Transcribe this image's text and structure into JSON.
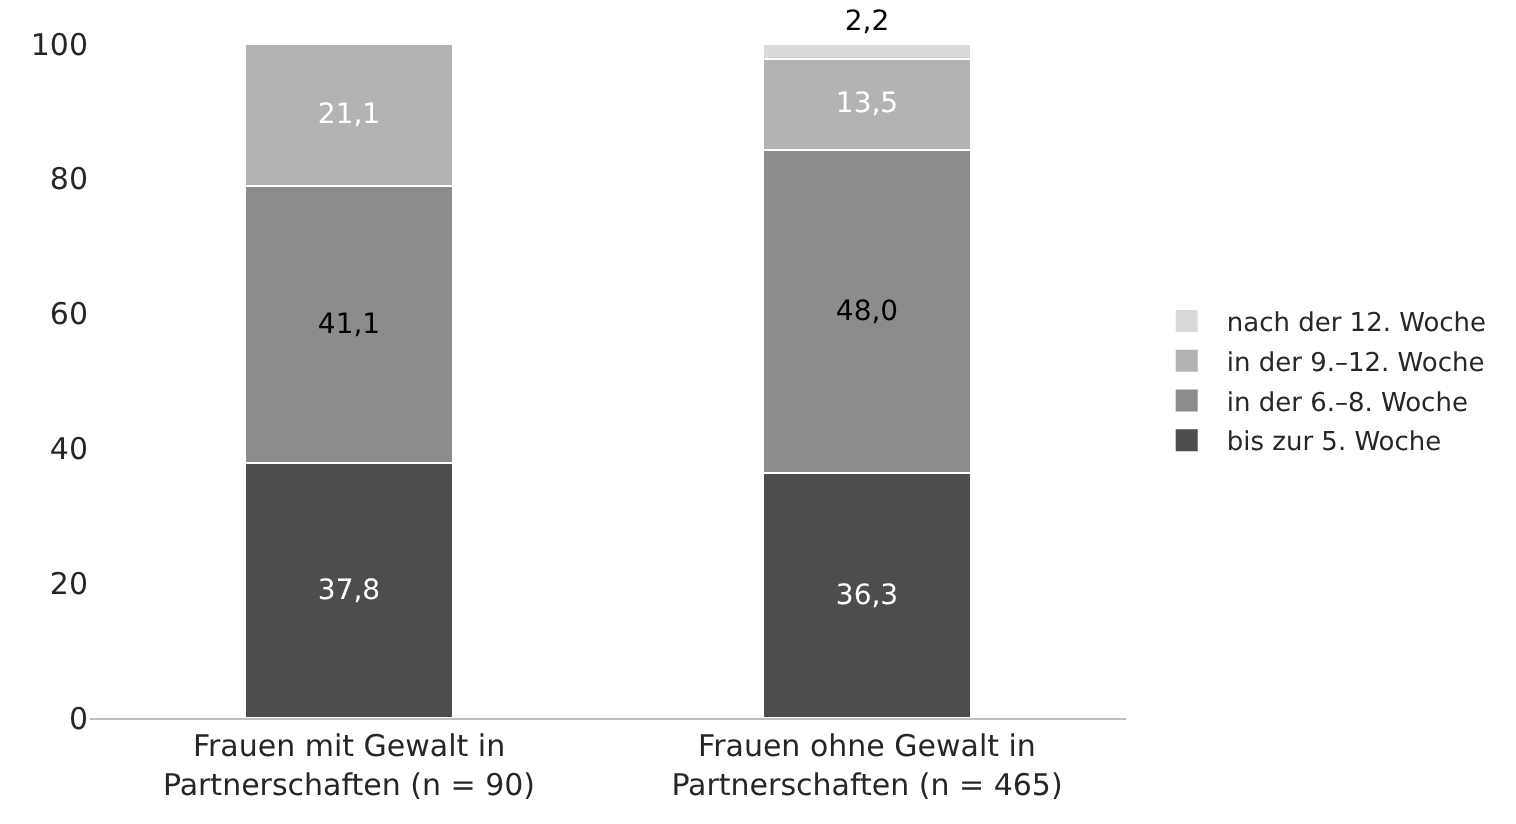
{
  "chart_data": {
    "type": "bar",
    "stacked": true,
    "categories": [
      "Frauen mit Gewalt in Partnerschaften (n = 90)",
      "Frauen ohne Gewalt in Partnerschaften (n = 465)"
    ],
    "series": [
      {
        "name": "bis zur 5. Woche",
        "color": "#4d4d4d",
        "values": [
          37.8,
          36.3
        ],
        "value_labels": [
          "37,8",
          "36,3"
        ]
      },
      {
        "name": "in der 6.–8. Woche",
        "color": "#8c8c8c",
        "values": [
          41.1,
          48.0
        ],
        "value_labels": [
          "41,1",
          "48,0"
        ]
      },
      {
        "name": "in der 9.–12. Woche",
        "color": "#b3b3b3",
        "values": [
          21.1,
          13.5
        ],
        "value_labels": [
          "21,1",
          "13,5"
        ]
      },
      {
        "name": "nach der 12. Woche",
        "color": "#d9d9d9",
        "values": [
          null,
          2.2
        ],
        "value_labels": [
          null,
          "2,2"
        ]
      }
    ],
    "ylim": [
      0,
      100
    ],
    "yticks": [
      0,
      20,
      40,
      60,
      80,
      100
    ],
    "grid": false,
    "legend": "right"
  }
}
